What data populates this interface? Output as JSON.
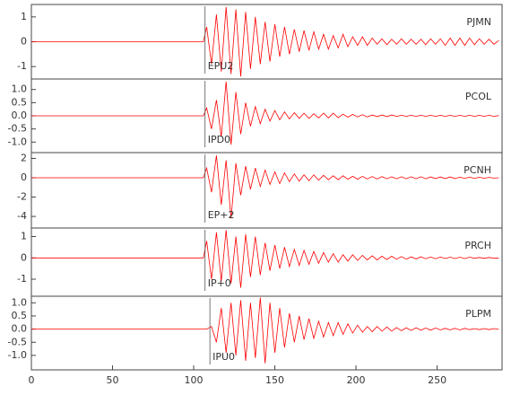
{
  "chart_data": [
    {
      "type": "line",
      "station": "PJMN",
      "pick": 107,
      "pick_label": "EPU2",
      "color": "#ff0000",
      "xlim": [
        0,
        290
      ],
      "ylim": [
        -1.5,
        1.5
      ],
      "yticks": [
        1,
        0,
        -1
      ],
      "x": [
        0,
        106,
        108,
        111,
        114,
        117,
        120,
        123,
        126,
        129,
        132,
        135,
        138,
        141,
        144,
        147,
        150,
        153,
        156,
        159,
        162,
        165,
        168,
        171,
        174,
        177,
        180,
        183,
        186,
        189,
        192,
        195,
        198,
        201,
        204,
        207,
        210,
        213,
        216,
        219,
        222,
        225,
        228,
        231,
        234,
        237,
        240,
        243,
        246,
        249,
        252,
        255,
        258,
        261,
        264,
        267,
        270,
        273,
        276,
        279,
        282,
        285,
        288
      ],
      "values": [
        0,
        0,
        0.6,
        -0.9,
        1.1,
        -1.2,
        1.4,
        -1.3,
        1.3,
        -1.4,
        1.2,
        -1.1,
        1.0,
        -0.9,
        0.8,
        -0.8,
        0.7,
        -0.6,
        0.6,
        -0.5,
        0.5,
        -0.4,
        0.45,
        -0.35,
        0.4,
        -0.3,
        0.3,
        -0.3,
        0.25,
        -0.25,
        0.3,
        -0.2,
        0.2,
        -0.15,
        0.2,
        -0.15,
        0.15,
        -0.1,
        0.12,
        -0.12,
        0.1,
        -0.1,
        0.12,
        -0.1,
        0.1,
        -0.1,
        0.1,
        -0.12,
        0.12,
        -0.1,
        0.12,
        -0.15,
        0.15,
        -0.15,
        0.15,
        -0.15,
        0.15,
        -0.12,
        0.12,
        -0.1,
        0.1,
        -0.1,
        0.05
      ]
    },
    {
      "type": "line",
      "station": "PCOL",
      "pick": 107,
      "pick_label": "IPD0",
      "color": "#ff0000",
      "xlim": [
        0,
        290
      ],
      "ylim": [
        -1.4,
        1.4
      ],
      "yticks": [
        {
          "value": 1,
          "label": "1.0"
        },
        0.5,
        {
          "value": 0,
          "label": "0.0"
        },
        -0.5,
        {
          "value": -1,
          "label": "-1.0"
        }
      ],
      "x": [
        0,
        106,
        108,
        111,
        114,
        117,
        120,
        123,
        126,
        129,
        132,
        135,
        138,
        141,
        144,
        147,
        150,
        153,
        156,
        159,
        162,
        165,
        168,
        171,
        174,
        177,
        180,
        183,
        186,
        189,
        192,
        195,
        198,
        201,
        204,
        207,
        210,
        213,
        216,
        219,
        222,
        225,
        228,
        231,
        234,
        237,
        240,
        243,
        246,
        249,
        252,
        255,
        258,
        261,
        264,
        267,
        270,
        273,
        276,
        279,
        282,
        285,
        288
      ],
      "values": [
        0,
        0,
        0.3,
        -0.5,
        0.6,
        -0.8,
        1.3,
        -1.1,
        0.9,
        -0.7,
        0.5,
        -0.4,
        0.35,
        -0.3,
        0.25,
        -0.2,
        0.2,
        -0.15,
        0.15,
        -0.12,
        0.12,
        -0.1,
        0.1,
        -0.1,
        0.08,
        -0.08,
        0.1,
        -0.08,
        0.1,
        -0.07,
        0.06,
        -0.05,
        0.05,
        -0.04,
        0.04,
        -0.04,
        0.03,
        -0.03,
        0.03,
        -0.03,
        0.03,
        -0.02,
        0.02,
        -0.02,
        0.02,
        -0.02,
        0.02,
        -0.02,
        0.02,
        -0.02,
        0.02,
        -0.02,
        0.02,
        -0.02,
        0.02,
        -0.02,
        0.02,
        -0.02,
        0.02,
        -0.02,
        0.02,
        -0.02,
        0.01
      ]
    },
    {
      "type": "line",
      "station": "PCNH",
      "pick": 107,
      "pick_label": "EP+2",
      "color": "#ff0000",
      "xlim": [
        0,
        290
      ],
      "ylim": [
        -5.2,
        2.6
      ],
      "yticks": [
        2,
        0,
        -2,
        -4
      ],
      "x": [
        0,
        106,
        108,
        111,
        114,
        117,
        120,
        123,
        126,
        129,
        132,
        135,
        138,
        141,
        144,
        147,
        150,
        153,
        156,
        159,
        162,
        165,
        168,
        171,
        174,
        177,
        180,
        183,
        186,
        189,
        192,
        195,
        198,
        201,
        204,
        207,
        210,
        213,
        216,
        219,
        222,
        225,
        228,
        231,
        234,
        237,
        240,
        243,
        246,
        249,
        252,
        255,
        258,
        261,
        264,
        267,
        270,
        273,
        276,
        279,
        282,
        285,
        288
      ],
      "values": [
        0,
        0,
        1.0,
        -1.5,
        2.3,
        -2.8,
        1.8,
        -4.2,
        1.5,
        -1.8,
        1.2,
        -1.2,
        1.0,
        -0.9,
        0.8,
        -0.7,
        0.6,
        -0.6,
        0.5,
        -0.4,
        0.4,
        -0.35,
        0.3,
        -0.3,
        0.3,
        -0.25,
        0.25,
        -0.2,
        0.2,
        -0.2,
        0.2,
        -0.15,
        0.15,
        -0.15,
        0.15,
        -0.12,
        0.12,
        -0.12,
        0.12,
        -0.1,
        0.1,
        -0.1,
        0.1,
        -0.1,
        0.1,
        -0.1,
        0.1,
        -0.1,
        0.08,
        -0.08,
        0.08,
        -0.08,
        0.08,
        -0.08,
        0.06,
        -0.06,
        0.06,
        -0.06,
        0.05,
        -0.05,
        0.04,
        -0.04,
        0.0
      ]
    },
    {
      "type": "line",
      "station": "PRCH",
      "pick": 107,
      "pick_label": "IP+0",
      "color": "#ff0000",
      "xlim": [
        0,
        290
      ],
      "ylim": [
        -1.8,
        1.4
      ],
      "yticks": [
        1,
        0,
        -1
      ],
      "x": [
        0,
        106,
        108,
        111,
        114,
        117,
        120,
        123,
        126,
        129,
        132,
        135,
        138,
        141,
        144,
        147,
        150,
        153,
        156,
        159,
        162,
        165,
        168,
        171,
        174,
        177,
        180,
        183,
        186,
        189,
        192,
        195,
        198,
        201,
        204,
        207,
        210,
        213,
        216,
        219,
        222,
        225,
        228,
        231,
        234,
        237,
        240,
        243,
        246,
        249,
        252,
        255,
        258,
        261,
        264,
        267,
        270,
        273,
        276,
        279,
        282,
        285,
        288
      ],
      "values": [
        0,
        0,
        0.8,
        -1.0,
        1.2,
        -1.1,
        1.3,
        -1.2,
        1.0,
        -1.4,
        1.1,
        -0.9,
        1.0,
        -0.8,
        0.7,
        -0.6,
        0.6,
        -0.5,
        0.5,
        -0.4,
        0.4,
        -0.35,
        0.35,
        -0.3,
        0.3,
        -0.25,
        0.25,
        -0.2,
        0.2,
        -0.2,
        0.15,
        -0.15,
        0.15,
        -0.12,
        0.12,
        -0.1,
        0.1,
        -0.1,
        0.08,
        -0.08,
        0.08,
        -0.06,
        0.06,
        -0.06,
        0.05,
        -0.05,
        0.05,
        -0.04,
        0.04,
        -0.04,
        0.04,
        -0.03,
        0.03,
        -0.03,
        0.03,
        -0.03,
        0.03,
        -0.02,
        0.02,
        -0.02,
        0.02,
        -0.02,
        0.0
      ]
    },
    {
      "type": "line",
      "station": "PLPM",
      "pick": 110,
      "pick_label": "IPU0",
      "color": "#ff0000",
      "xlim": [
        0,
        290
      ],
      "ylim": [
        -1.55,
        1.25
      ],
      "yticks": [
        {
          "value": 1,
          "label": "1.0"
        },
        0.5,
        {
          "value": 0,
          "label": "0.0"
        },
        -0.5,
        {
          "value": -1,
          "label": "-1.0"
        }
      ],
      "xticks": [
        0,
        50,
        100,
        150,
        200,
        250
      ],
      "x": [
        0,
        106,
        108,
        111,
        114,
        117,
        120,
        123,
        126,
        129,
        132,
        135,
        138,
        141,
        144,
        147,
        150,
        153,
        156,
        159,
        162,
        165,
        168,
        171,
        174,
        177,
        180,
        183,
        186,
        189,
        192,
        195,
        198,
        201,
        204,
        207,
        210,
        213,
        216,
        219,
        222,
        225,
        228,
        231,
        234,
        237,
        240,
        243,
        246,
        249,
        252,
        255,
        258,
        261,
        264,
        267,
        270,
        273,
        276,
        279,
        282,
        285,
        288
      ],
      "values": [
        0,
        0,
        0.0,
        0.1,
        -0.5,
        0.8,
        -0.9,
        1.0,
        -1.0,
        1.1,
        -1.2,
        1.0,
        -1.1,
        1.2,
        -1.3,
        1.0,
        -0.9,
        0.8,
        -0.7,
        0.6,
        -0.5,
        0.5,
        -0.4,
        0.4,
        -0.35,
        0.3,
        -0.3,
        0.25,
        -0.25,
        0.25,
        -0.2,
        0.2,
        -0.15,
        0.15,
        -0.12,
        0.1,
        -0.1,
        0.1,
        -0.08,
        0.08,
        -0.08,
        0.06,
        -0.06,
        0.05,
        -0.05,
        0.05,
        -0.04,
        0.04,
        -0.04,
        0.04,
        -0.03,
        0.03,
        -0.03,
        0.03,
        -0.03,
        0.03,
        -0.02,
        0.02,
        -0.02,
        0.02,
        -0.02,
        0.02,
        -0.01
      ]
    }
  ]
}
